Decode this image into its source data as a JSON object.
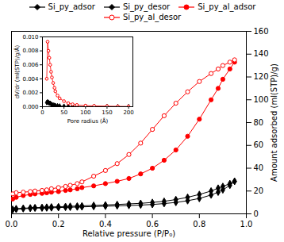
{
  "chart_data": [
    {
      "type": "line",
      "xlabel": "Relative pressure (P/P₀)",
      "ylabel": "Amount adsorbed (ml(STP)/g)",
      "xlim": [
        0,
        1.0
      ],
      "ylim": [
        0,
        160
      ],
      "xticks": [
        {
          "value": 0,
          "label": "0.0"
        },
        0.2,
        0.4,
        0.6,
        0.8,
        {
          "value": 1.0,
          "label": "1.0"
        }
      ],
      "yticks": [
        0,
        20,
        40,
        60,
        80,
        100,
        120,
        140,
        160
      ],
      "grid": false,
      "legend": "top",
      "series": [
        {
          "name": "Si_py_adsor",
          "color": "black",
          "marker": "diamond",
          "x": [
            0.005,
            0.02,
            0.05,
            0.08,
            0.1,
            0.13,
            0.15,
            0.17,
            0.2,
            0.23,
            0.25,
            0.28,
            0.3,
            0.35,
            0.4,
            0.45,
            0.5,
            0.55,
            0.6,
            0.65,
            0.7,
            0.75,
            0.8,
            0.85,
            0.88,
            0.9,
            0.93,
            0.95
          ],
          "values": [
            3.5,
            4.0,
            4.5,
            4.8,
            5.0,
            5.1,
            5.2,
            5.3,
            5.5,
            5.7,
            5.8,
            6.0,
            6.1,
            6.4,
            6.7,
            7.0,
            7.3,
            7.7,
            8.2,
            9.0,
            10.0,
            11.5,
            13.5,
            16.5,
            19.0,
            21.0,
            25.0,
            28.5
          ]
        },
        {
          "name": "Si_py_desor",
          "color": "black",
          "marker": "diamond",
          "x": [
            0.95,
            0.93,
            0.9,
            0.88,
            0.85,
            0.8,
            0.75,
            0.7,
            0.65,
            0.6,
            0.55,
            0.5,
            0.45,
            0.4,
            0.35,
            0.3,
            0.28,
            0.25,
            0.23,
            0.2,
            0.17,
            0.15,
            0.13,
            0.1,
            0.08,
            0.05,
            0.02,
            0.005
          ],
          "values": [
            28.5,
            26.5,
            24.0,
            22.5,
            20.0,
            17.0,
            14.5,
            12.5,
            11.0,
            10.0,
            9.2,
            8.7,
            8.2,
            7.8,
            7.4,
            7.0,
            6.8,
            6.6,
            6.4,
            6.2,
            6.0,
            5.8,
            5.6,
            5.4,
            5.2,
            4.9,
            4.5,
            4.0
          ]
        },
        {
          "name": "Si_py_al_adsor",
          "color": "red",
          "marker": "circle",
          "x": [
            0.005,
            0.02,
            0.05,
            0.08,
            0.1,
            0.13,
            0.15,
            0.17,
            0.2,
            0.23,
            0.25,
            0.28,
            0.3,
            0.35,
            0.4,
            0.45,
            0.5,
            0.55,
            0.6,
            0.65,
            0.7,
            0.75,
            0.8,
            0.85,
            0.88,
            0.9,
            0.93,
            0.95
          ],
          "values": [
            13.0,
            14.5,
            16.0,
            17.0,
            17.5,
            18.0,
            18.5,
            19.0,
            19.5,
            20.5,
            21.0,
            22.0,
            23.0,
            24.5,
            26.5,
            28.5,
            31.0,
            35.0,
            40.0,
            47.0,
            56.0,
            68.0,
            83.0,
            100.0,
            110.0,
            118.0,
            127.0,
            133.0
          ]
        },
        {
          "name": "Si_py_al_desor",
          "color": "red",
          "marker": "circle-open",
          "x": [
            0.95,
            0.93,
            0.9,
            0.88,
            0.85,
            0.8,
            0.75,
            0.7,
            0.65,
            0.6,
            0.55,
            0.5,
            0.45,
            0.4,
            0.35,
            0.3,
            0.28,
            0.25,
            0.23,
            0.2,
            0.17,
            0.15,
            0.13,
            0.1,
            0.08,
            0.05,
            0.02,
            0.005
          ],
          "values": [
            135.0,
            133.0,
            130.0,
            127.0,
            123.0,
            116.0,
            107.0,
            97.0,
            86.0,
            74.0,
            62.0,
            52.0,
            44.0,
            38.0,
            33.0,
            28.0,
            26.5,
            25.0,
            24.0,
            23.0,
            22.0,
            21.0,
            20.5,
            20.0,
            19.5,
            19.0,
            18.5,
            17.5
          ]
        }
      ]
    },
    {
      "type": "line",
      "xlabel": "Pore radius (Å)",
      "ylabel": "dV/dr (ml(STP)/g/Å)",
      "xlim": [
        0,
        210
      ],
      "ylim": [
        0,
        0.01
      ],
      "xticks": [
        0,
        50,
        100,
        150,
        200
      ],
      "yticks": [
        {
          "value": 0,
          "label": "0.000"
        },
        {
          "value": 0.002,
          "label": "0.002"
        },
        {
          "value": 0.004,
          "label": "0.004"
        },
        {
          "value": 0.006,
          "label": "0.006"
        },
        {
          "value": 0.008,
          "label": "0.008"
        },
        {
          "value": 0.01,
          "label": "0.010"
        }
      ],
      "grid": false,
      "series": [
        {
          "color": "black",
          "marker": "diamond",
          "x": [
            10,
            12,
            14,
            16,
            18,
            20,
            22,
            25,
            28,
            30,
            35,
            40,
            50,
            60,
            70,
            80,
            100,
            120,
            150,
            175,
            200
          ],
          "values": [
            0.0006,
            0.0007,
            0.0006,
            0.0005,
            0.0005,
            0.0004,
            0.0003,
            0.00025,
            0.0002,
            0.00017,
            0.00013,
            0.0001,
            7e-05,
            5e-05,
            4e-05,
            3e-05,
            2e-05,
            1.5e-05,
            1e-05,
            7e-06,
            5e-06
          ]
        },
        {
          "color": "red",
          "marker": "circle-open",
          "x": [
            10,
            12,
            14,
            16,
            18,
            20,
            22,
            25,
            28,
            30,
            35,
            40,
            50,
            60,
            70,
            80,
            100,
            120,
            150,
            175,
            200
          ],
          "values": [
            0.004,
            0.0093,
            0.008,
            0.007,
            0.006,
            0.005,
            0.0042,
            0.0034,
            0.0027,
            0.0022,
            0.0016,
            0.0012,
            0.0008,
            0.0005,
            0.00035,
            0.00025,
            0.00016,
            0.00012,
            8e-05,
            5e-05,
            3e-05
          ]
        }
      ]
    }
  ]
}
